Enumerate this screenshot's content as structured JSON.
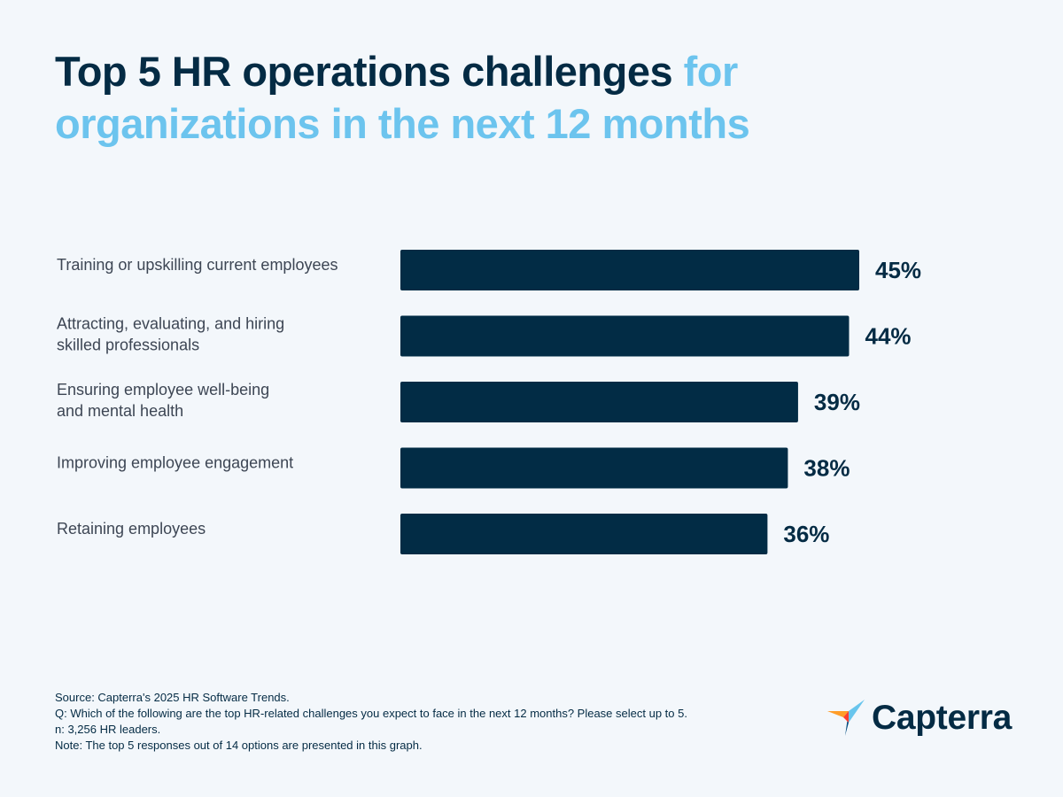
{
  "title": {
    "part1": "Top 5 HR operations challenges ",
    "part2": "for organizations in the next 12 months",
    "color_dark": "#042b44",
    "color_light": "#6cc4ee"
  },
  "chart_data": {
    "type": "bar",
    "orientation": "horizontal",
    "categories": [
      "Training or upskilling current employees",
      "Attracting, evaluating, and hiring skilled professionals",
      "Ensuring employee well-being and mental health",
      "Improving employee engagement",
      "Retaining employees"
    ],
    "category_lines": [
      [
        "Training or upskilling current employees"
      ],
      [
        "Attracting, evaluating, and hiring",
        "skilled professionals"
      ],
      [
        "Ensuring employee well-being",
        "and mental health"
      ],
      [
        "Improving employee engagement"
      ],
      [
        "Retaining employees"
      ]
    ],
    "values": [
      45,
      44,
      39,
      38,
      36
    ],
    "labels": [
      "45%",
      "44%",
      "39%",
      "38%",
      "36%"
    ],
    "unit": "%",
    "xlim": [
      0,
      45
    ],
    "grid": false,
    "legend": "none",
    "bar_color": "#022c45",
    "label_color": "#042b44",
    "category_color": "#3d4654"
  },
  "footnotes": [
    "Source: Capterra's 2025 HR Software Trends.",
    "Q: Which of the following are the top HR-related challenges you expect to face in the next 12 months? Please select up to 5.",
    "n: 3,256 HR leaders.",
    "Note: The top 5 responses out of 14 options are presented in this graph."
  ],
  "logo": {
    "text": "Capterra",
    "colors": [
      "#ff9d28",
      "#68c5ed",
      "#044d80",
      "#ff3d2e"
    ]
  }
}
